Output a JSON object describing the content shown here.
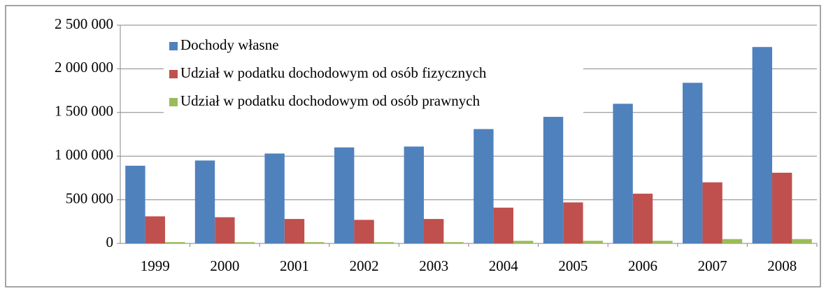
{
  "chart_data": {
    "type": "bar",
    "categories": [
      "1999",
      "2000",
      "2001",
      "2002",
      "2003",
      "2004",
      "2005",
      "2006",
      "2007",
      "2008"
    ],
    "series": [
      {
        "name": "Dochody własne",
        "color": "#4f81bd",
        "values": [
          890000,
          950000,
          1030000,
          1100000,
          1110000,
          1310000,
          1450000,
          1600000,
          1840000,
          2250000
        ]
      },
      {
        "name": "Udział w podatku dochodowym od osób fizycznych",
        "color": "#c0504d",
        "values": [
          310000,
          300000,
          280000,
          270000,
          280000,
          410000,
          470000,
          570000,
          700000,
          810000
        ]
      },
      {
        "name": "Udział w podatku dochodowym od osób prawnych",
        "color": "#9bbb59",
        "values": [
          15000,
          15000,
          15000,
          15000,
          15000,
          30000,
          30000,
          30000,
          50000,
          50000
        ]
      }
    ],
    "ylim": [
      0,
      2500000
    ],
    "yticks": [
      0,
      {
        "value": 500000,
        "label": "500 000"
      },
      {
        "value": 1000000,
        "label": "1 000 000"
      },
      {
        "value": 1500000,
        "label": "1 500 000"
      },
      {
        "value": 2000000,
        "label": "2 000 000"
      },
      {
        "value": 2500000,
        "label": "2 500 000"
      }
    ],
    "grid": true,
    "legend": "top-left"
  }
}
